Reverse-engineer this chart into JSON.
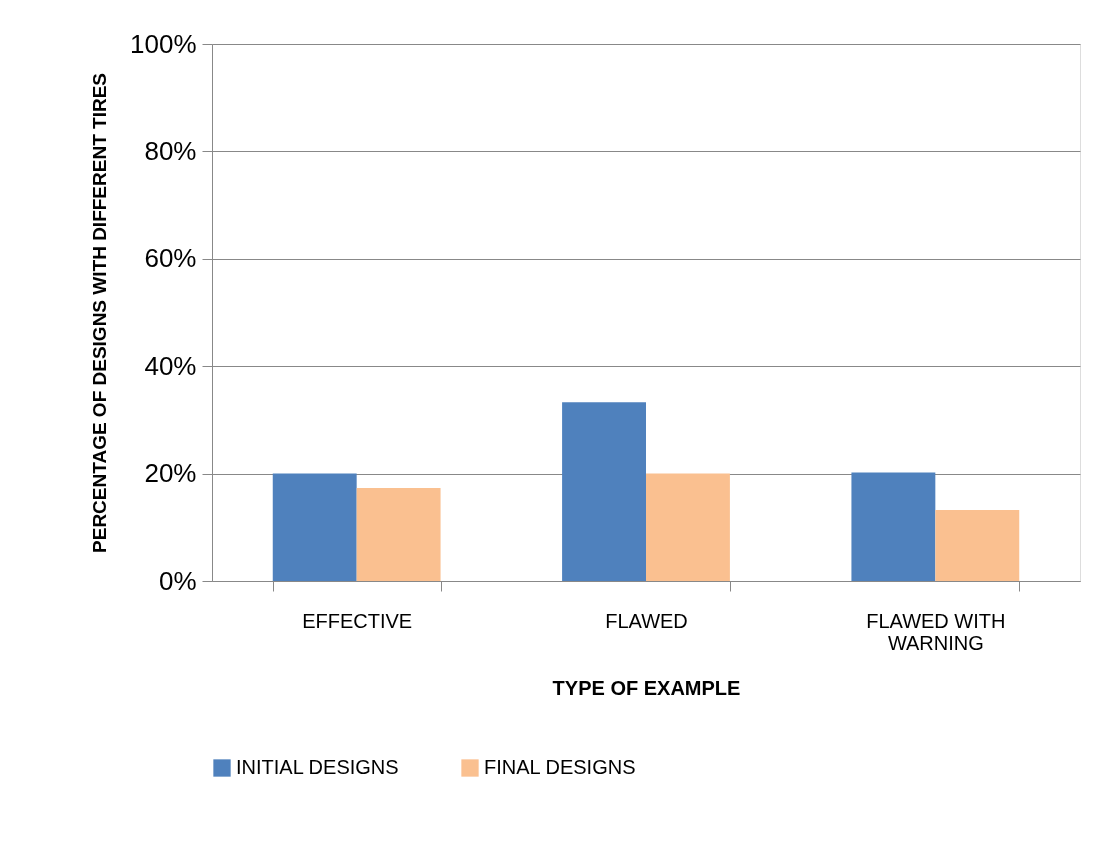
{
  "chart_data": {
    "type": "bar",
    "xlabel": "TYPE OF EXAMPLE",
    "ylabel": "PERCENTAGE OF DESIGNS WITH DIFFERENT TIRES",
    "categories": [
      "EFFECTIVE",
      "FLAWED",
      "FLAWED WITH\nWARNING"
    ],
    "series": [
      {
        "name": "INITIAL DESIGNS",
        "color": "#4f81bd",
        "values": [
          20,
          33.3,
          20.2
        ]
      },
      {
        "name": "FINAL DESIGNS",
        "color": "#fac090",
        "values": [
          17.3,
          20,
          13.2
        ]
      }
    ],
    "ylim": [
      0,
      100
    ],
    "yticks": [
      {
        "value": 0,
        "label": "0%"
      },
      {
        "value": 20,
        "label": "20%"
      },
      {
        "value": 40,
        "label": "40%"
      },
      {
        "value": 60,
        "label": "60%"
      },
      {
        "value": 80,
        "label": "80%"
      },
      {
        "value": 100,
        "label": "100%"
      }
    ],
    "grid": "y",
    "legend": "bottom"
  }
}
